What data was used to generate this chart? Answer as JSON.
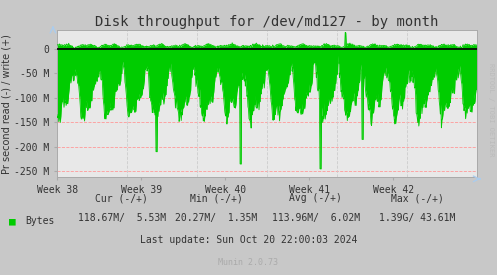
{
  "title": "Disk throughput for /dev/md127 - by month",
  "ylabel": "Pr second read (-) / write (+)",
  "bg_color": "#c8c8c8",
  "plot_bg_color": "#e8e8e8",
  "grid_color_h": "#ff9999",
  "grid_color_v": "#cccccc",
  "line_color": "#00cc00",
  "zero_line_color": "#000000",
  "ylim": [
    -262500000,
    37500000
  ],
  "yticks": [
    0,
    -50000000,
    -100000000,
    -150000000,
    -200000000,
    -250000000
  ],
  "ytick_labels": [
    "0",
    "-50 M",
    "-100 M",
    "-150 M",
    "-200 M",
    "-250 M"
  ],
  "x_labels": [
    "Week 38",
    "Week 39",
    "Week 40",
    "Week 41",
    "Week 42"
  ],
  "legend_label": "Bytes",
  "legend_color": "#00cc00",
  "cur_neg": "118.67M",
  "cur_pos": "5.53M",
  "min_neg": "20.27M",
  "min_pos": "1.35M",
  "avg_neg": "113.96M",
  "avg_pos": "6.02M",
  "max_neg": "1.39G",
  "max_pos": "43.61M",
  "last_update": "Last update: Sun Oct 20 22:00:03 2024",
  "munin_version": "Munin 2.0.73",
  "rrdtool_text": "RRDTOOL / TOBI OETIKER",
  "title_fontsize": 10,
  "label_fontsize": 7,
  "tick_fontsize": 7,
  "n_points": 800
}
